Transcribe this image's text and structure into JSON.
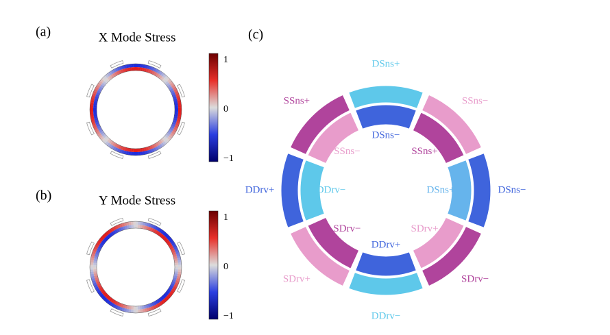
{
  "panels": {
    "a": {
      "tag": "(a)",
      "title": "X Mode Stress",
      "colorbar_labels": [
        "1",
        "0",
        "−1"
      ]
    },
    "b": {
      "tag": "(b)",
      "title": "Y Mode Stress",
      "colorbar_labels": [
        "1",
        "0",
        "−1"
      ]
    },
    "c": {
      "tag": "(c)",
      "outer_segments": [
        {
          "label": "DSns+",
          "color": "#5ec8ea"
        },
        {
          "label": "SSns−",
          "color": "#e89ccb"
        },
        {
          "label": "DSns−",
          "color": "#3f64dc"
        },
        {
          "label": "SDrv−",
          "color": "#b0449c"
        },
        {
          "label": "DDrv−",
          "color": "#5ec8ea"
        },
        {
          "label": "SDrv+",
          "color": "#e89ccb"
        },
        {
          "label": "DDrv+",
          "color": "#3f64dc"
        },
        {
          "label": "SSns+",
          "color": "#b0449c"
        }
      ],
      "inner_segments": [
        {
          "label": "DSns−",
          "color": "#3f64dc"
        },
        {
          "label": "SSns+",
          "color": "#b0449c"
        },
        {
          "label": "DSns+",
          "color": "#66b4ec"
        },
        {
          "label": "SDrv+",
          "color": "#e89ccb"
        },
        {
          "label": "DDrv+",
          "color": "#3f64dc"
        },
        {
          "label": "SDrv−",
          "color": "#b0449c"
        },
        {
          "label": "DDrv−",
          "color": "#5ec8ea"
        },
        {
          "label": "SSns−",
          "color": "#e89ccb"
        }
      ]
    }
  }
}
